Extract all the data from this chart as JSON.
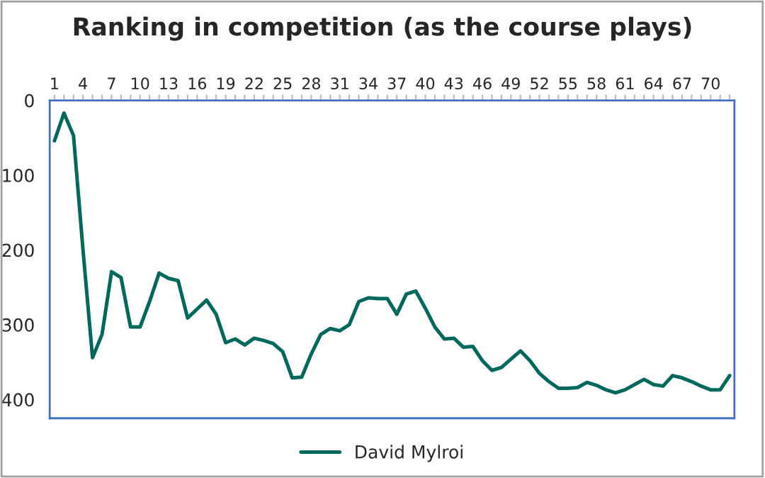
{
  "chart_data": {
    "type": "line",
    "title": "Ranking in competition (as the course plays)",
    "categories": [
      "1",
      null,
      null,
      "4",
      null,
      null,
      "7",
      null,
      null,
      "10",
      null,
      null,
      "13",
      null,
      null,
      "16",
      null,
      null,
      "19",
      null,
      null,
      "22",
      null,
      null,
      "25",
      null,
      null,
      "28",
      null,
      null,
      "31",
      null,
      null,
      "34",
      null,
      null,
      "37",
      null,
      null,
      "40",
      null,
      null,
      "43",
      null,
      null,
      "46",
      null,
      null,
      "49",
      null,
      null,
      "52",
      null,
      null,
      "55",
      null,
      null,
      "58",
      null,
      null,
      "61",
      null,
      null,
      "64",
      null,
      null,
      "67",
      null,
      null,
      "70",
      null,
      null
    ],
    "series": [
      {
        "name": "David Mylroi",
        "color": "#00695c",
        "values": [
          54,
          17,
          47,
          200,
          344,
          313,
          229,
          237,
          303,
          303,
          269,
          231,
          238,
          241,
          291,
          279,
          267,
          286,
          324,
          319,
          327,
          318,
          321,
          325,
          336,
          371,
          370,
          339,
          313,
          305,
          308,
          300,
          269,
          264,
          265,
          265,
          286,
          259,
          255,
          278,
          303,
          319,
          318,
          330,
          329,
          348,
          361,
          357,
          346,
          335,
          348,
          365,
          376,
          385,
          385,
          384,
          377,
          381,
          387,
          391,
          387,
          380,
          373,
          380,
          382,
          368,
          371,
          376,
          382,
          387,
          387,
          368
        ]
      }
    ],
    "ylim": [
      425,
      0
    ],
    "yticks": [
      0,
      100,
      200,
      300,
      400
    ],
    "grid": false,
    "legend": "bottom",
    "marker": "none",
    "line_style": "solid"
  }
}
